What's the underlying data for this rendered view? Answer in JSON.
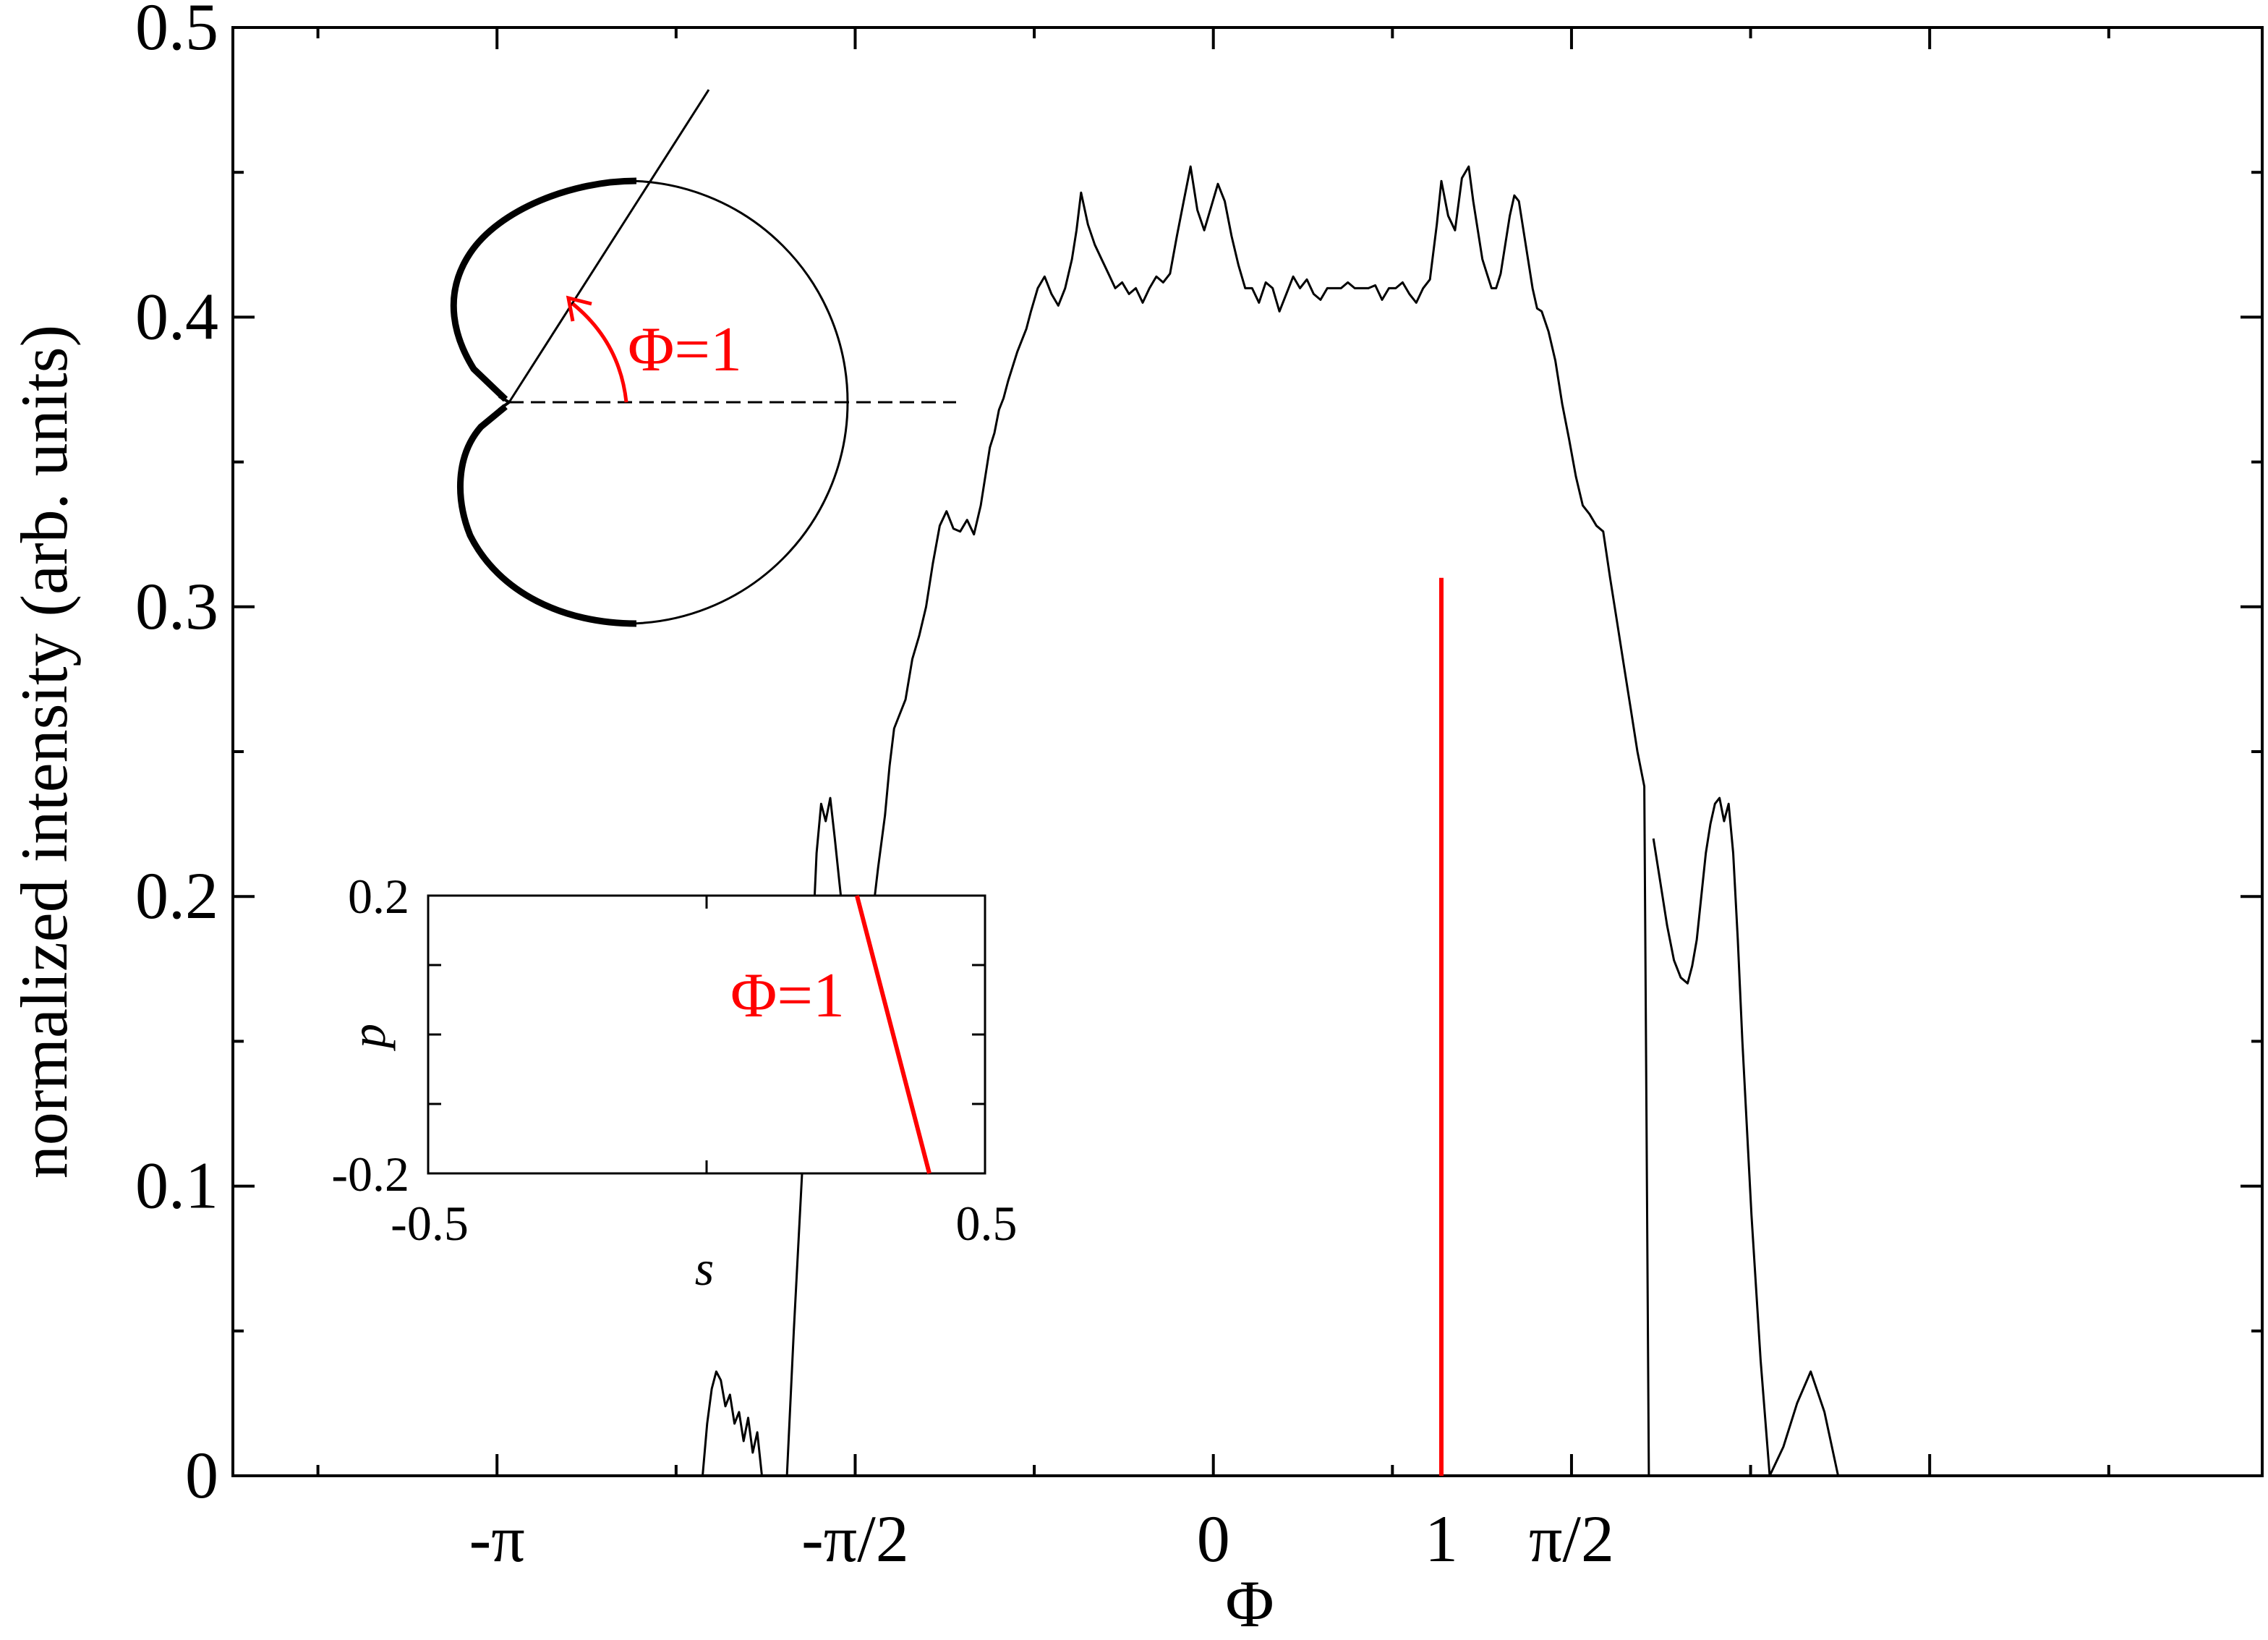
{
  "chart_data": {
    "type": "line",
    "xlabel": "Φ",
    "ylabel": "normalized intensity (arb. units)",
    "xlim": [
      -4.3,
      4.6
    ],
    "ylim": [
      0,
      0.5
    ],
    "grid": false,
    "y_ticks": [
      "0",
      "0.1",
      "0.2",
      "0.3",
      "0.4",
      "0.5"
    ],
    "x_ticks": [
      {
        "value": -3.14159,
        "label": "-π"
      },
      {
        "value": -1.5708,
        "label": "-π/2"
      },
      {
        "value": 0,
        "label": "0"
      },
      {
        "value": 1,
        "label": "1"
      },
      {
        "value": 1.5708,
        "label": "π/2"
      }
    ],
    "marker": {
      "x": 1,
      "y_top": 0.31,
      "color": "#ff0000"
    },
    "series": [
      {
        "color": "#000000",
        "segments": [
          {
            "x": [
              -2.24,
              -2.22,
              -2.2,
              -2.18,
              -2.16,
              -2.14,
              -2.12,
              -2.1,
              -2.08,
              -2.06,
              -2.04,
              -2.02,
              -2.0,
              -1.98
            ],
            "y": [
              0.0,
              0.018,
              0.03,
              0.036,
              0.033,
              0.024,
              0.028,
              0.018,
              0.022,
              0.012,
              0.02,
              0.008,
              0.015,
              0.0
            ]
          },
          {
            "x": [
              -1.87,
              -1.84,
              -1.8,
              -1.76,
              -1.74,
              -1.72,
              -1.7,
              -1.68,
              -1.66,
              -1.64,
              -1.62,
              -1.6,
              -1.58,
              -1.56,
              -1.53,
              -1.5,
              -1.47,
              -1.44,
              -1.42,
              -1.4,
              -1.38,
              -1.35,
              -1.32,
              -1.29,
              -1.26,
              -1.23,
              -1.2,
              -1.17,
              -1.14,
              -1.11,
              -1.08,
              -1.05,
              -1.02,
              -1.0,
              -0.98,
              -0.96,
              -0.94,
              -0.92,
              -0.9,
              -0.88,
              -0.86,
              -0.84,
              -0.82,
              -0.8,
              -0.77,
              -0.74,
              -0.71,
              -0.68,
              -0.65,
              -0.62,
              -0.6,
              -0.58,
              -0.55,
              -0.52,
              -0.49,
              -0.46,
              -0.43,
              -0.4,
              -0.37,
              -0.34,
              -0.31,
              -0.28,
              -0.25,
              -0.22,
              -0.19,
              -0.16,
              -0.13,
              -0.1,
              -0.07,
              -0.04,
              -0.01,
              0.02,
              0.05,
              0.08,
              0.11,
              0.14,
              0.17,
              0.2,
              0.23,
              0.26,
              0.29,
              0.32,
              0.35,
              0.38,
              0.41,
              0.44,
              0.47,
              0.5,
              0.53,
              0.56,
              0.59,
              0.62,
              0.65,
              0.68,
              0.71,
              0.74,
              0.77,
              0.8,
              0.83,
              0.86,
              0.89,
              0.92,
              0.95,
              0.98,
              1.0,
              1.03,
              1.06,
              1.09,
              1.12,
              1.14,
              1.16,
              1.18,
              1.2,
              1.22,
              1.24,
              1.26,
              1.28,
              1.3,
              1.32,
              1.34,
              1.36,
              1.38,
              1.4,
              1.42,
              1.44,
              1.47,
              1.5,
              1.53,
              1.56,
              1.59,
              1.62,
              1.65,
              1.68,
              1.71,
              1.74,
              1.77,
              1.8,
              1.83,
              1.86,
              1.89,
              1.91
            ],
            "y": [
              0.0,
              0.05,
              0.11,
              0.18,
              0.215,
              0.232,
              0.226,
              0.234,
              0.22,
              0.205,
              0.19,
              0.178,
              0.172,
              0.17,
              0.178,
              0.19,
              0.21,
              0.228,
              0.245,
              0.258,
              0.262,
              0.268,
              0.282,
              0.29,
              0.3,
              0.315,
              0.328,
              0.333,
              0.327,
              0.326,
              0.33,
              0.325,
              0.335,
              0.345,
              0.355,
              0.36,
              0.368,
              0.372,
              0.378,
              0.383,
              0.388,
              0.392,
              0.396,
              0.402,
              0.41,
              0.414,
              0.408,
              0.404,
              0.41,
              0.42,
              0.43,
              0.443,
              0.432,
              0.425,
              0.42,
              0.415,
              0.41,
              0.412,
              0.408,
              0.41,
              0.405,
              0.41,
              0.414,
              0.412,
              0.415,
              0.428,
              0.44,
              0.452,
              0.437,
              0.43,
              0.438,
              0.446,
              0.44,
              0.428,
              0.418,
              0.41,
              0.41,
              0.405,
              0.412,
              0.41,
              0.402,
              0.408,
              0.414,
              0.41,
              0.413,
              0.408,
              0.406,
              0.41,
              0.41,
              0.41,
              0.412,
              0.41,
              0.41,
              0.41,
              0.411,
              0.406,
              0.41,
              0.41,
              0.412,
              0.408,
              0.405,
              0.41,
              0.413,
              0.432,
              0.447,
              0.435,
              0.43,
              0.448,
              0.452,
              0.44,
              0.43,
              0.42,
              0.415,
              0.41,
              0.41,
              0.415,
              0.425,
              0.435,
              0.442,
              0.44,
              0.43,
              0.42,
              0.41,
              0.403,
              0.402,
              0.395,
              0.385,
              0.37,
              0.358,
              0.345,
              0.335,
              0.332,
              0.328,
              0.326,
              0.31,
              0.295,
              0.28,
              0.265,
              0.25,
              0.238,
              0.0
            ]
          },
          {
            "x": [
              1.93,
              1.96,
              1.99,
              2.02,
              2.05,
              2.08,
              2.1,
              2.12,
              2.14,
              2.16,
              2.18,
              2.2,
              2.22,
              2.24,
              2.26,
              2.28,
              2.3,
              2.32,
              2.34,
              2.36,
              2.4,
              2.44,
              2.5,
              2.56,
              2.62,
              2.68,
              2.74
            ],
            "y": [
              0.22,
              0.205,
              0.19,
              0.178,
              0.172,
              0.17,
              0.176,
              0.185,
              0.2,
              0.215,
              0.225,
              0.232,
              0.234,
              0.226,
              0.232,
              0.215,
              0.185,
              0.15,
              0.12,
              0.09,
              0.04,
              0.0,
              0.01,
              0.025,
              0.036,
              0.022,
              0.0
            ]
          }
        ]
      }
    ]
  },
  "inset": {
    "xlabel": "s",
    "ylabel": "p",
    "xlim": [
      -0.5,
      0.5
    ],
    "ylim": [
      -0.2,
      0.2
    ],
    "x_tick_labels": [
      "-0.5",
      "0.5"
    ],
    "y_tick_labels": [
      "0.2",
      "-0.2"
    ],
    "line": {
      "s": [
        0.27,
        0.4
      ],
      "p": [
        0.2,
        -0.2
      ],
      "color": "#ff0000"
    },
    "label": "Φ=1"
  },
  "diagram": {
    "angle_label": "Φ=1"
  }
}
